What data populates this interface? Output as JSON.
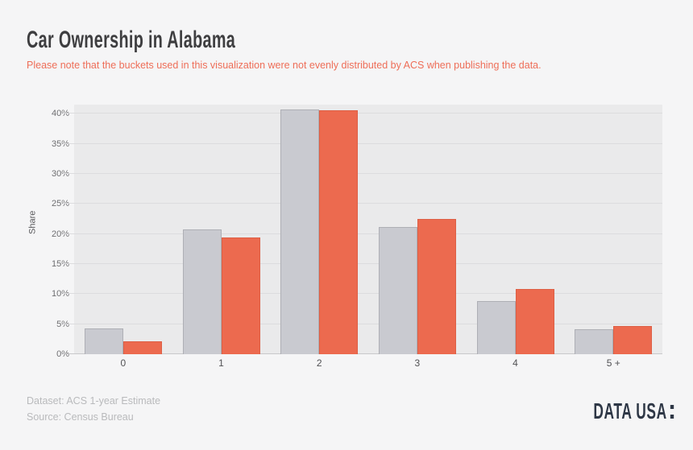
{
  "page": {
    "title": "Car Ownership in Alabama",
    "subtitle": "Please note that the buckets used in this visualization were not evenly distributed by ACS when publishing the data.",
    "background_color": "#f5f5f6",
    "subtitle_color": "#ee6e58"
  },
  "chart_data": {
    "type": "bar",
    "title": "Car Ownership in Alabama",
    "xlabel": "",
    "ylabel": "Share",
    "categories": [
      "0",
      "1",
      "2",
      "3",
      "4",
      "5 +"
    ],
    "series": [
      {
        "name": "gray-series",
        "color": "#c9cad0",
        "border_color": "#aeafb5",
        "values": [
          4.3,
          20.7,
          40.7,
          21.2,
          8.9,
          4.2
        ]
      },
      {
        "name": "orange-series",
        "color": "#ec6a4f",
        "border_color": "#dd5f45",
        "values": [
          2.2,
          19.4,
          40.5,
          22.5,
          10.9,
          4.7
        ]
      }
    ],
    "yticks": [
      "0%",
      "5%",
      "10%",
      "15%",
      "20%",
      "25%",
      "30%",
      "35%",
      "40%"
    ],
    "ytick_values": [
      0,
      5,
      10,
      15,
      20,
      25,
      30,
      35,
      40
    ],
    "ylim": [
      0,
      41.5
    ],
    "grid": true,
    "legend": "none",
    "plot_background": "#eaeaeb",
    "gridline_color": "#dcdcde"
  },
  "footer": {
    "dataset": "Dataset: ACS 1-year Estimate",
    "source": "Source: Census Bureau",
    "logo_text": "DATA USA"
  }
}
